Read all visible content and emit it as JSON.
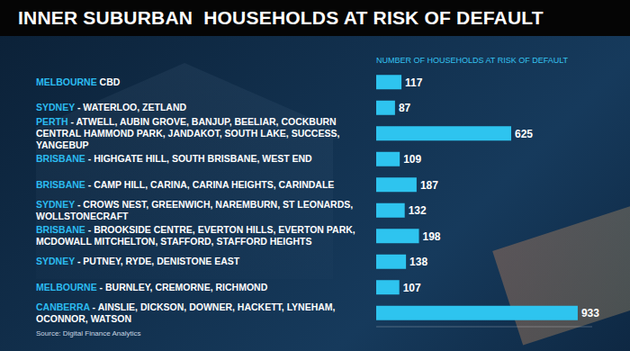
{
  "chart_data": {
    "type": "bar",
    "title": "INNER SUBURBAN  HOUSEHOLDS AT RISK OF DEFAULT",
    "x_label": "NUMBER OF HOUSEHOLDS AT RISK OF DEFAULT",
    "source": "Source: Digital Finance Analytics",
    "orientation": "horizontal",
    "categories": [
      "MELBOURNE CBD",
      "SYDNEY - WATERLOO, ZETLAND",
      "PERTH - ATWELL, AUBIN GROVE, BANJUP, BEELIAR, COCKBURN CENTRAL HAMMOND PARK, JANDAKOT, SOUTH LAKE, SUCCESS, YANGEBUP",
      "BRISBANE - HIGHGATE HILL, SOUTH BRISBANE, WEST END",
      "BRISBANE - CAMP HILL, CARINA, CARINA HEIGHTS, CARINDALE",
      "SYDNEY - CROWS NEST, GREENWICH, NAREMBURN, ST LEONARDS, WOLLSTONECRAFT",
      "BRISBANE - BROOKSIDE CENTRE, EVERTON HILLS, EVERTON PARK, MCDOWALL MITCHELTON, STAFFORD, STAFFORD HEIGHTS",
      "SYDNEY - PUTNEY, RYDE, DENISTONE EAST",
      "MELBOURNE - BURNLEY, CREMORNE, RICHMOND",
      "CANBERRA - AINSLIE, DICKSON, DOWNER, HACKETT, LYNEHAM, OCONNOR, WATSON"
    ],
    "values": [
      117,
      87,
      625,
      109,
      187,
      132,
      198,
      138,
      107,
      933
    ],
    "color": "#2ec4ef",
    "xlim": [
      0,
      1000
    ],
    "data_labels": true,
    "tick_labels": false,
    "grid": false
  }
}
